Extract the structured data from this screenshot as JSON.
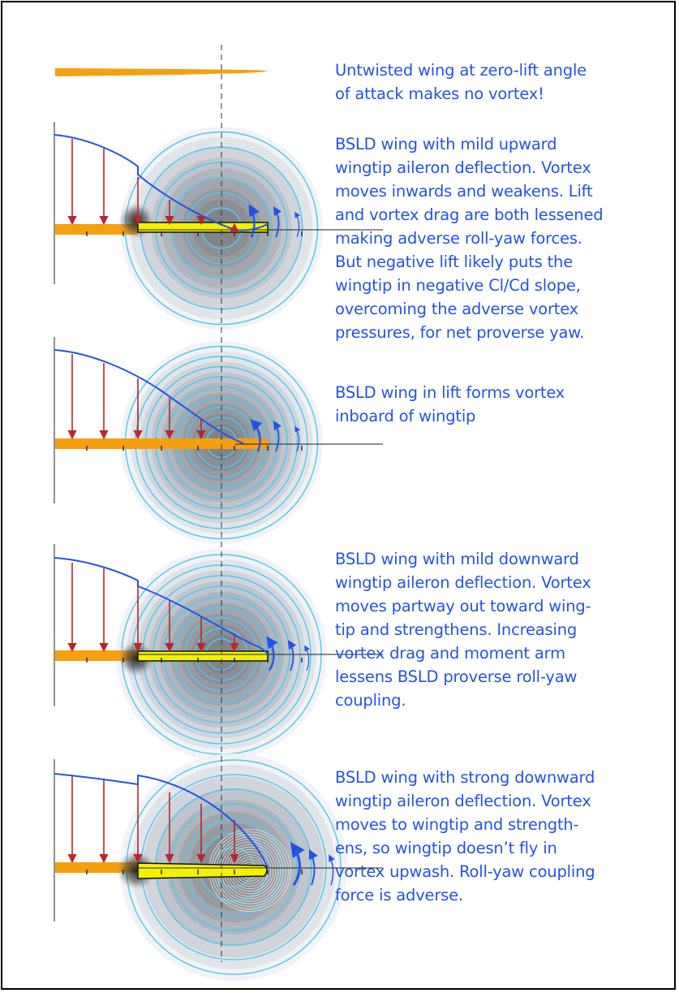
{
  "captions": [
    {
      "lines": [
        "Untwisted wing at zero-lift angle",
        "of attack makes no vortex!"
      ]
    },
    {
      "lines": [
        "BSLD wing with mild upward",
        "wingtip aileron deflection. Vortex",
        "moves inwards and weakens. Lift",
        "and vortex drag are both lessened",
        "making adverse roll-yaw forces.",
        "But negative lift likely puts the",
        "wingtip in negative Cl/Cd slope,",
        "overcoming the adverse vortex",
        "pressures, for net proverse yaw."
      ]
    },
    {
      "lines": [
        "BSLD wing in lift forms vortex",
        "inboard of wingtip"
      ]
    },
    {
      "lines": [
        "BSLD wing with mild downward",
        "wingtip aileron deflection. Vortex",
        "moves partway out toward wing-",
        "tip and strengthens. Increasing",
        "vortex drag and moment arm",
        "lessens BSLD proverse roll-yaw",
        "coupling."
      ]
    },
    {
      "lines": [
        "BSLD wing with strong downward",
        "wingtip aileron deflection. Vortex",
        "moves to wingtip and strength-",
        "ens, so wingtip doesn’t fly in",
        "vortex upwash. Roll-yaw coupling",
        "force is adverse."
      ]
    }
  ],
  "colors": {
    "text": "#2452e8",
    "wing": "#f5a00f",
    "aileron": "#f5f000",
    "lift_curve": "#2452e8",
    "lift_arrow": "#b8262b",
    "vortex_ring": "#4fc8ec",
    "vortex_arrow": "#2452e8"
  }
}
